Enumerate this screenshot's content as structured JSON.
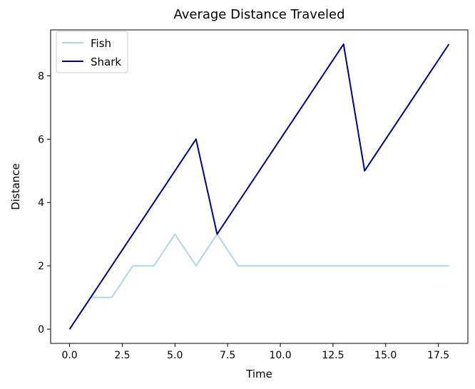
{
  "chart_data": {
    "type": "line",
    "title": "Average Distance Traveled",
    "xlabel": "Time",
    "ylabel": "Distance",
    "x": [
      0,
      1,
      2,
      3,
      4,
      5,
      6,
      7,
      8,
      9,
      10,
      11,
      12,
      13,
      14,
      15,
      16,
      17,
      18
    ],
    "series": [
      {
        "name": "Fish",
        "color": "#add8e6",
        "values": [
          0,
          1,
          1,
          2,
          2,
          3,
          2,
          3,
          2,
          2,
          2,
          2,
          2,
          2,
          2,
          2,
          2,
          2,
          2
        ]
      },
      {
        "name": "Shark",
        "color": "#00008b",
        "values": [
          0,
          1,
          2,
          3,
          4,
          5,
          6,
          3,
          4,
          5,
          6,
          7,
          8,
          9,
          5,
          6,
          7,
          8,
          9
        ]
      }
    ],
    "xlim": [
      -0.9,
      18.9
    ],
    "ylim": [
      -0.45,
      9.45
    ],
    "xticks": [
      0.0,
      2.5,
      5.0,
      7.5,
      10.0,
      12.5,
      15.0,
      17.5
    ],
    "xtick_labels": [
      "0.0",
      "2.5",
      "5.0",
      "7.5",
      "10.0",
      "12.5",
      "15.0",
      "17.5"
    ],
    "yticks": [
      0,
      2,
      4,
      6,
      8
    ],
    "ytick_labels": [
      "0",
      "2",
      "4",
      "6",
      "8"
    ],
    "grid": false,
    "legend_position": "top-left"
  }
}
